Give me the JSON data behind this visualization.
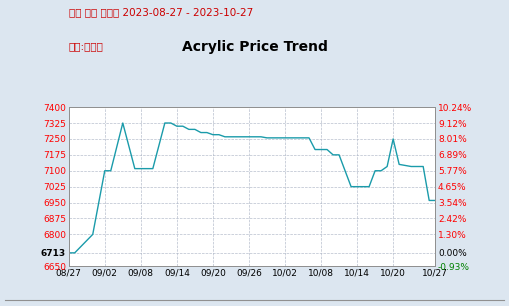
{
  "title_line1": "丙烯 山东 生产价 2023-08-27 - 2023-10-27",
  "title_line2": "品级:一等品",
  "center_title": "Acrylic Price Trend",
  "bg_color": "#dce6f0",
  "plot_bg_color": "#ffffff",
  "line_color": "#1a9baa",
  "left_yticks": [
    6650,
    6713,
    6800,
    6875,
    6950,
    7025,
    7100,
    7175,
    7250,
    7325,
    7400
  ],
  "right_ytick_labels": [
    "-0.93%",
    "0.00%",
    "1.30%",
    "2.42%",
    "3.54%",
    "4.65%",
    "5.77%",
    "6.89%",
    "8.01%",
    "9.12%",
    "10.24%"
  ],
  "ymin": 6650,
  "ymax": 7400,
  "xtick_labels": [
    "08/27",
    "09/02",
    "09/08",
    "09/14",
    "09/20",
    "09/26",
    "10/02",
    "10/08",
    "10/14",
    "10/20",
    "10/27"
  ],
  "x_positions": [
    0,
    6,
    12,
    18,
    24,
    30,
    36,
    42,
    48,
    54,
    61
  ],
  "price_data": [
    [
      0,
      6713
    ],
    [
      1,
      6713
    ],
    [
      4,
      6800
    ],
    [
      6,
      7100
    ],
    [
      7,
      7100
    ],
    [
      9,
      7325
    ],
    [
      11,
      7110
    ],
    [
      12,
      7110
    ],
    [
      14,
      7110
    ],
    [
      16,
      7325
    ],
    [
      17,
      7325
    ],
    [
      18,
      7310
    ],
    [
      19,
      7310
    ],
    [
      20,
      7295
    ],
    [
      21,
      7295
    ],
    [
      22,
      7280
    ],
    [
      23,
      7280
    ],
    [
      24,
      7270
    ],
    [
      25,
      7270
    ],
    [
      26,
      7260
    ],
    [
      27,
      7260
    ],
    [
      28,
      7260
    ],
    [
      29,
      7260
    ],
    [
      30,
      7260
    ],
    [
      31,
      7260
    ],
    [
      32,
      7260
    ],
    [
      33,
      7255
    ],
    [
      34,
      7255
    ],
    [
      35,
      7255
    ],
    [
      36,
      7255
    ],
    [
      37,
      7255
    ],
    [
      38,
      7255
    ],
    [
      39,
      7255
    ],
    [
      40,
      7255
    ],
    [
      41,
      7200
    ],
    [
      42,
      7200
    ],
    [
      43,
      7200
    ],
    [
      44,
      7175
    ],
    [
      45,
      7175
    ],
    [
      46,
      7100
    ],
    [
      47,
      7025
    ],
    [
      48,
      7025
    ],
    [
      49,
      7025
    ],
    [
      50,
      7025
    ],
    [
      51,
      7100
    ],
    [
      52,
      7100
    ],
    [
      53,
      7120
    ],
    [
      54,
      7250
    ],
    [
      55,
      7130
    ],
    [
      56,
      7125
    ],
    [
      57,
      7120
    ],
    [
      58,
      7120
    ],
    [
      59,
      7120
    ],
    [
      60,
      6960
    ],
    [
      61,
      6960
    ]
  ]
}
